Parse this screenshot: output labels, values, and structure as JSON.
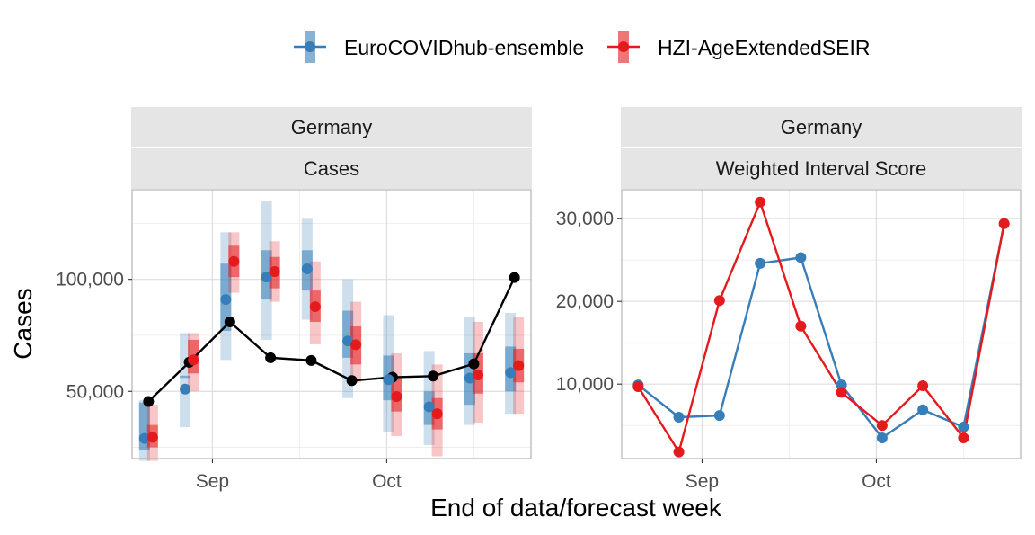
{
  "legend": {
    "items": [
      {
        "label": "EuroCOVIDhub-ensemble",
        "color": "#377EB8"
      },
      {
        "label": "HZI-AgeExtendedSEIR",
        "color": "#E41A1C"
      }
    ]
  },
  "x_axis_title": "End of data/forecast week",
  "chart_data": [
    {
      "type": "line",
      "panel_strips": [
        "Germany",
        "Cases"
      ],
      "xlabel": "End of data/forecast week",
      "ylabel": "Cases",
      "x_tick_labels": [
        "Sep",
        "Oct"
      ],
      "y_tick_labels": [
        "50,000",
        "100,000"
      ],
      "y_ticks": [
        50000,
        100000
      ],
      "ylim": [
        20000,
        140000
      ],
      "x": [
        "2021-08-21",
        "2021-08-28",
        "2021-09-04",
        "2021-09-11",
        "2021-09-18",
        "2021-09-25",
        "2021-10-02",
        "2021-10-09",
        "2021-10-16",
        "2021-10-23"
      ],
      "observed": {
        "color": "#000000",
        "values": [
          45500,
          63000,
          81000,
          65000,
          63800,
          54800,
          56300,
          56800,
          62300,
          100800
        ]
      },
      "forecasts": [
        {
          "name": "EuroCOVIDhub-ensemble",
          "color": "#377EB8",
          "median": [
            29000,
            51000,
            91000,
            101000,
            104700,
            72500,
            55200,
            43100,
            55900,
            58400
          ],
          "inner": [
            [
              24000,
              45000
            ],
            [
              56000,
              57000
            ],
            [
              77000,
              107000
            ],
            [
              91000,
              113000
            ],
            [
              95000,
              113000
            ],
            [
              65000,
              86000
            ],
            [
              46000,
              66000
            ],
            [
              35000,
              50000
            ],
            [
              44000,
              67000
            ],
            [
              50000,
              70000
            ]
          ],
          "outer": [
            [
              19000,
              46000
            ],
            [
              34000,
              76000
            ],
            [
              64000,
              121000
            ],
            [
              73000,
              135000
            ],
            [
              82000,
              127000
            ],
            [
              47000,
              100000
            ],
            [
              32000,
              84000
            ],
            [
              26000,
              68000
            ],
            [
              35000,
              83000
            ],
            [
              40000,
              85000
            ]
          ]
        },
        {
          "name": "HZI-AgeExtendedSEIR",
          "color": "#E41A1C",
          "median": [
            29500,
            64000,
            108000,
            103500,
            87800,
            70800,
            47700,
            40000,
            57300,
            61500
          ],
          "inner": [
            [
              25000,
              35000
            ],
            [
              58000,
              73000
            ],
            [
              101000,
              115000
            ],
            [
              96000,
              110000
            ],
            [
              81000,
              95000
            ],
            [
              62000,
              79000
            ],
            [
              41000,
              56000
            ],
            [
              33000,
              47000
            ],
            [
              49000,
              67000
            ],
            [
              54000,
              69000
            ]
          ],
          "outer": [
            [
              19000,
              44000
            ],
            [
              50000,
              76000
            ],
            [
              94000,
              121000
            ],
            [
              90000,
              117000
            ],
            [
              71000,
              108000
            ],
            [
              54000,
              90000
            ],
            [
              30000,
              67000
            ],
            [
              21000,
              62000
            ],
            [
              36000,
              81000
            ],
            [
              40000,
              83000
            ]
          ]
        }
      ]
    },
    {
      "type": "line",
      "panel_strips": [
        "Germany",
        "Weighted Interval Score"
      ],
      "xlabel": "End of data/forecast week",
      "x_tick_labels": [
        "Sep",
        "Oct"
      ],
      "y_tick_labels": [
        "10,000",
        "20,000",
        "30,000"
      ],
      "y_ticks": [
        10000,
        20000,
        30000
      ],
      "ylim": [
        1000,
        33500
      ],
      "x": [
        "2021-08-21",
        "2021-08-28",
        "2021-09-04",
        "2021-09-11",
        "2021-09-18",
        "2021-09-25",
        "2021-10-02",
        "2021-10-09",
        "2021-10-16",
        "2021-10-23"
      ],
      "series": [
        {
          "name": "EuroCOVIDhub-ensemble",
          "color": "#377EB8",
          "values": [
            9900,
            6000,
            6200,
            24600,
            25300,
            9900,
            3500,
            6900,
            4800,
            29400
          ]
        },
        {
          "name": "HZI-AgeExtendedSEIR",
          "color": "#E41A1C",
          "values": [
            9700,
            1800,
            20100,
            32000,
            17000,
            9000,
            5000,
            9800,
            3500,
            29400
          ]
        }
      ]
    }
  ]
}
